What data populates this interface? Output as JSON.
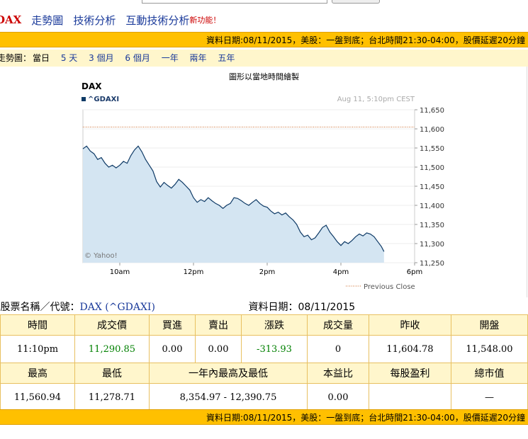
{
  "nav": {
    "symbol": "DAX",
    "links": [
      "走勢圖",
      "技術分析",
      "互動技術分析"
    ],
    "new_feature": "新功能！"
  },
  "info_bar": {
    "text": "資料日期:08/11/2015，美股：一盤到底；台北時間21:30-04:00，股價延遲20分鐘"
  },
  "range_bar": {
    "label": "走勢圖：",
    "current": "當日",
    "options": [
      "5 天",
      "3 個月",
      "6 個月",
      "一年",
      "兩年",
      "五年"
    ]
  },
  "chart_caption": "圖形以當地時間繪製",
  "chart_data": {
    "type": "area",
    "title": "DAX",
    "series_legend": "^GDAXI",
    "timestamp": "Aug 11, 5:10pm CEST",
    "watermark": "© Yahoo!",
    "previous_close_label": "Previous Close",
    "previous_close": 11604.78,
    "ylim": [
      11250,
      11650
    ],
    "yticks": [
      "11,650",
      "11,600",
      "11,550",
      "11,500",
      "11,450",
      "11,400",
      "11,350",
      "11,300",
      "11,250"
    ],
    "xlim": [
      9,
      18
    ],
    "xticks": [
      {
        "t": 10,
        "label": "10am"
      },
      {
        "t": 12,
        "label": "12pm"
      },
      {
        "t": 14,
        "label": "2pm"
      },
      {
        "t": 16,
        "label": "4pm"
      },
      {
        "t": 18,
        "label": "6pm"
      }
    ],
    "points": [
      [
        9.0,
        11548
      ],
      [
        9.1,
        11555
      ],
      [
        9.2,
        11542
      ],
      [
        9.3,
        11535
      ],
      [
        9.4,
        11520
      ],
      [
        9.5,
        11525
      ],
      [
        9.6,
        11510
      ],
      [
        9.7,
        11500
      ],
      [
        9.8,
        11505
      ],
      [
        9.9,
        11498
      ],
      [
        10.0,
        11505
      ],
      [
        10.1,
        11515
      ],
      [
        10.2,
        11510
      ],
      [
        10.3,
        11530
      ],
      [
        10.4,
        11545
      ],
      [
        10.5,
        11555
      ],
      [
        10.6,
        11540
      ],
      [
        10.7,
        11520
      ],
      [
        10.8,
        11505
      ],
      [
        10.9,
        11490
      ],
      [
        11.0,
        11462
      ],
      [
        11.1,
        11448
      ],
      [
        11.2,
        11460
      ],
      [
        11.3,
        11452
      ],
      [
        11.4,
        11445
      ],
      [
        11.5,
        11455
      ],
      [
        11.6,
        11468
      ],
      [
        11.7,
        11460
      ],
      [
        11.8,
        11450
      ],
      [
        11.9,
        11440
      ],
      [
        12.0,
        11420
      ],
      [
        12.1,
        11408
      ],
      [
        12.2,
        11415
      ],
      [
        12.3,
        11410
      ],
      [
        12.4,
        11420
      ],
      [
        12.5,
        11412
      ],
      [
        12.6,
        11405
      ],
      [
        12.7,
        11400
      ],
      [
        12.8,
        11392
      ],
      [
        12.9,
        11400
      ],
      [
        13.0,
        11405
      ],
      [
        13.1,
        11420
      ],
      [
        13.2,
        11418
      ],
      [
        13.3,
        11412
      ],
      [
        13.4,
        11405
      ],
      [
        13.5,
        11400
      ],
      [
        13.6,
        11408
      ],
      [
        13.7,
        11415
      ],
      [
        13.8,
        11405
      ],
      [
        13.9,
        11398
      ],
      [
        14.0,
        11395
      ],
      [
        14.1,
        11385
      ],
      [
        14.2,
        11378
      ],
      [
        14.3,
        11382
      ],
      [
        14.4,
        11375
      ],
      [
        14.5,
        11380
      ],
      [
        14.6,
        11370
      ],
      [
        14.7,
        11362
      ],
      [
        14.8,
        11350
      ],
      [
        14.9,
        11330
      ],
      [
        15.0,
        11318
      ],
      [
        15.1,
        11322
      ],
      [
        15.2,
        11310
      ],
      [
        15.3,
        11315
      ],
      [
        15.4,
        11328
      ],
      [
        15.5,
        11342
      ],
      [
        15.6,
        11348
      ],
      [
        15.7,
        11330
      ],
      [
        15.8,
        11318
      ],
      [
        15.9,
        11305
      ],
      [
        16.0,
        11295
      ],
      [
        16.1,
        11305
      ],
      [
        16.2,
        11300
      ],
      [
        16.3,
        11308
      ],
      [
        16.4,
        11318
      ],
      [
        16.5,
        11325
      ],
      [
        16.6,
        11320
      ],
      [
        16.7,
        11328
      ],
      [
        16.8,
        11325
      ],
      [
        16.9,
        11318
      ],
      [
        17.0,
        11305
      ],
      [
        17.1,
        11292
      ],
      [
        17.17,
        11279
      ]
    ],
    "line_color": "#0e3a66",
    "fill_color": "#d4e5f2",
    "prev_close_color": "#cc6a2b"
  },
  "quote": {
    "name_label": "股票名稱／代號：",
    "name_value": "DAX (^GDAXI)",
    "date_label": "資料日期：08/11/2015",
    "row1_headers": [
      "時間",
      "成交價",
      "買進",
      "賣出",
      "漲跌",
      "成交量",
      "昨收",
      "開盤"
    ],
    "row1_values": [
      "11:10pm",
      "11,290.85",
      "0.00",
      "0.00",
      "-313.93",
      "0",
      "11,604.78",
      "11,548.00"
    ],
    "row2_headers": [
      "最高",
      "最低",
      "一年內最高及最低",
      "本益比",
      "每股盈利",
      "總市值"
    ],
    "row2_values": [
      "11,560.94",
      "11,278.71",
      "8,354.97 - 12,390.75",
      "0.00",
      "",
      "—"
    ]
  },
  "colors": {
    "accent_bar": "#ffc000",
    "header_bg": "#fff6cc",
    "link": "#1a3a9a",
    "up_down_green": "#008000",
    "symbol_red": "#cc0000"
  }
}
